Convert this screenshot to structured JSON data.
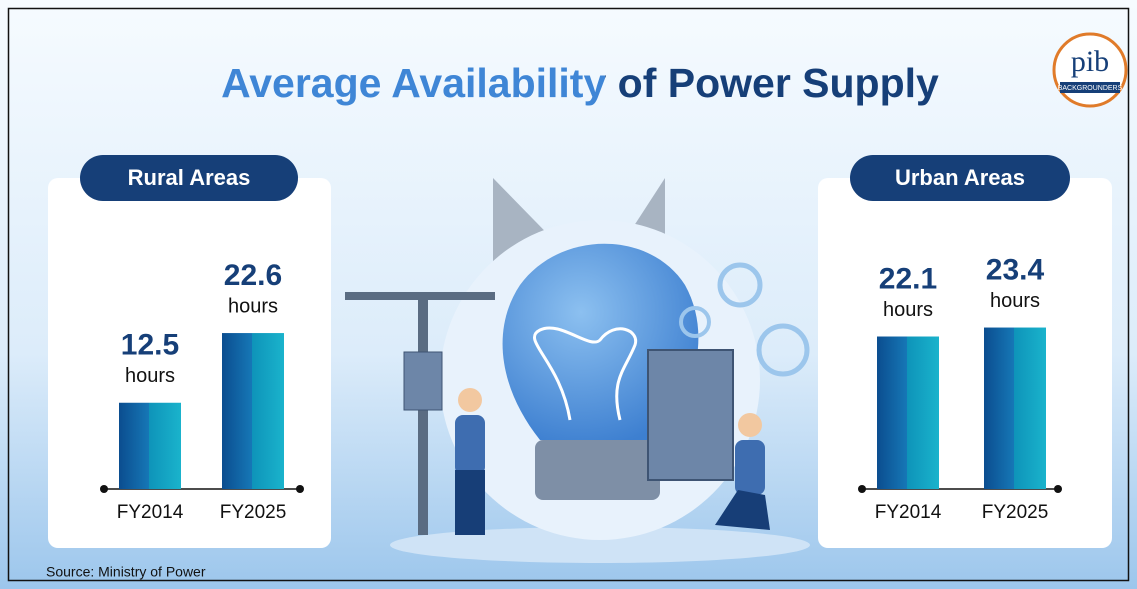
{
  "title": "Average Availability of Power Supply",
  "source": "Source: Ministry of Power",
  "logo": {
    "text": "pib",
    "subtext": "BACKGROUNDERS"
  },
  "chart_data": [
    {
      "type": "bar",
      "title": "Rural Areas",
      "unit": "hours",
      "categories": [
        "FY2014",
        "FY2025"
      ],
      "values": [
        12.5,
        22.6
      ]
    },
    {
      "type": "bar",
      "title": "Urban Areas",
      "unit": "hours",
      "categories": [
        "FY2014",
        "FY2025"
      ],
      "values": [
        22.1,
        23.4
      ]
    }
  ]
}
